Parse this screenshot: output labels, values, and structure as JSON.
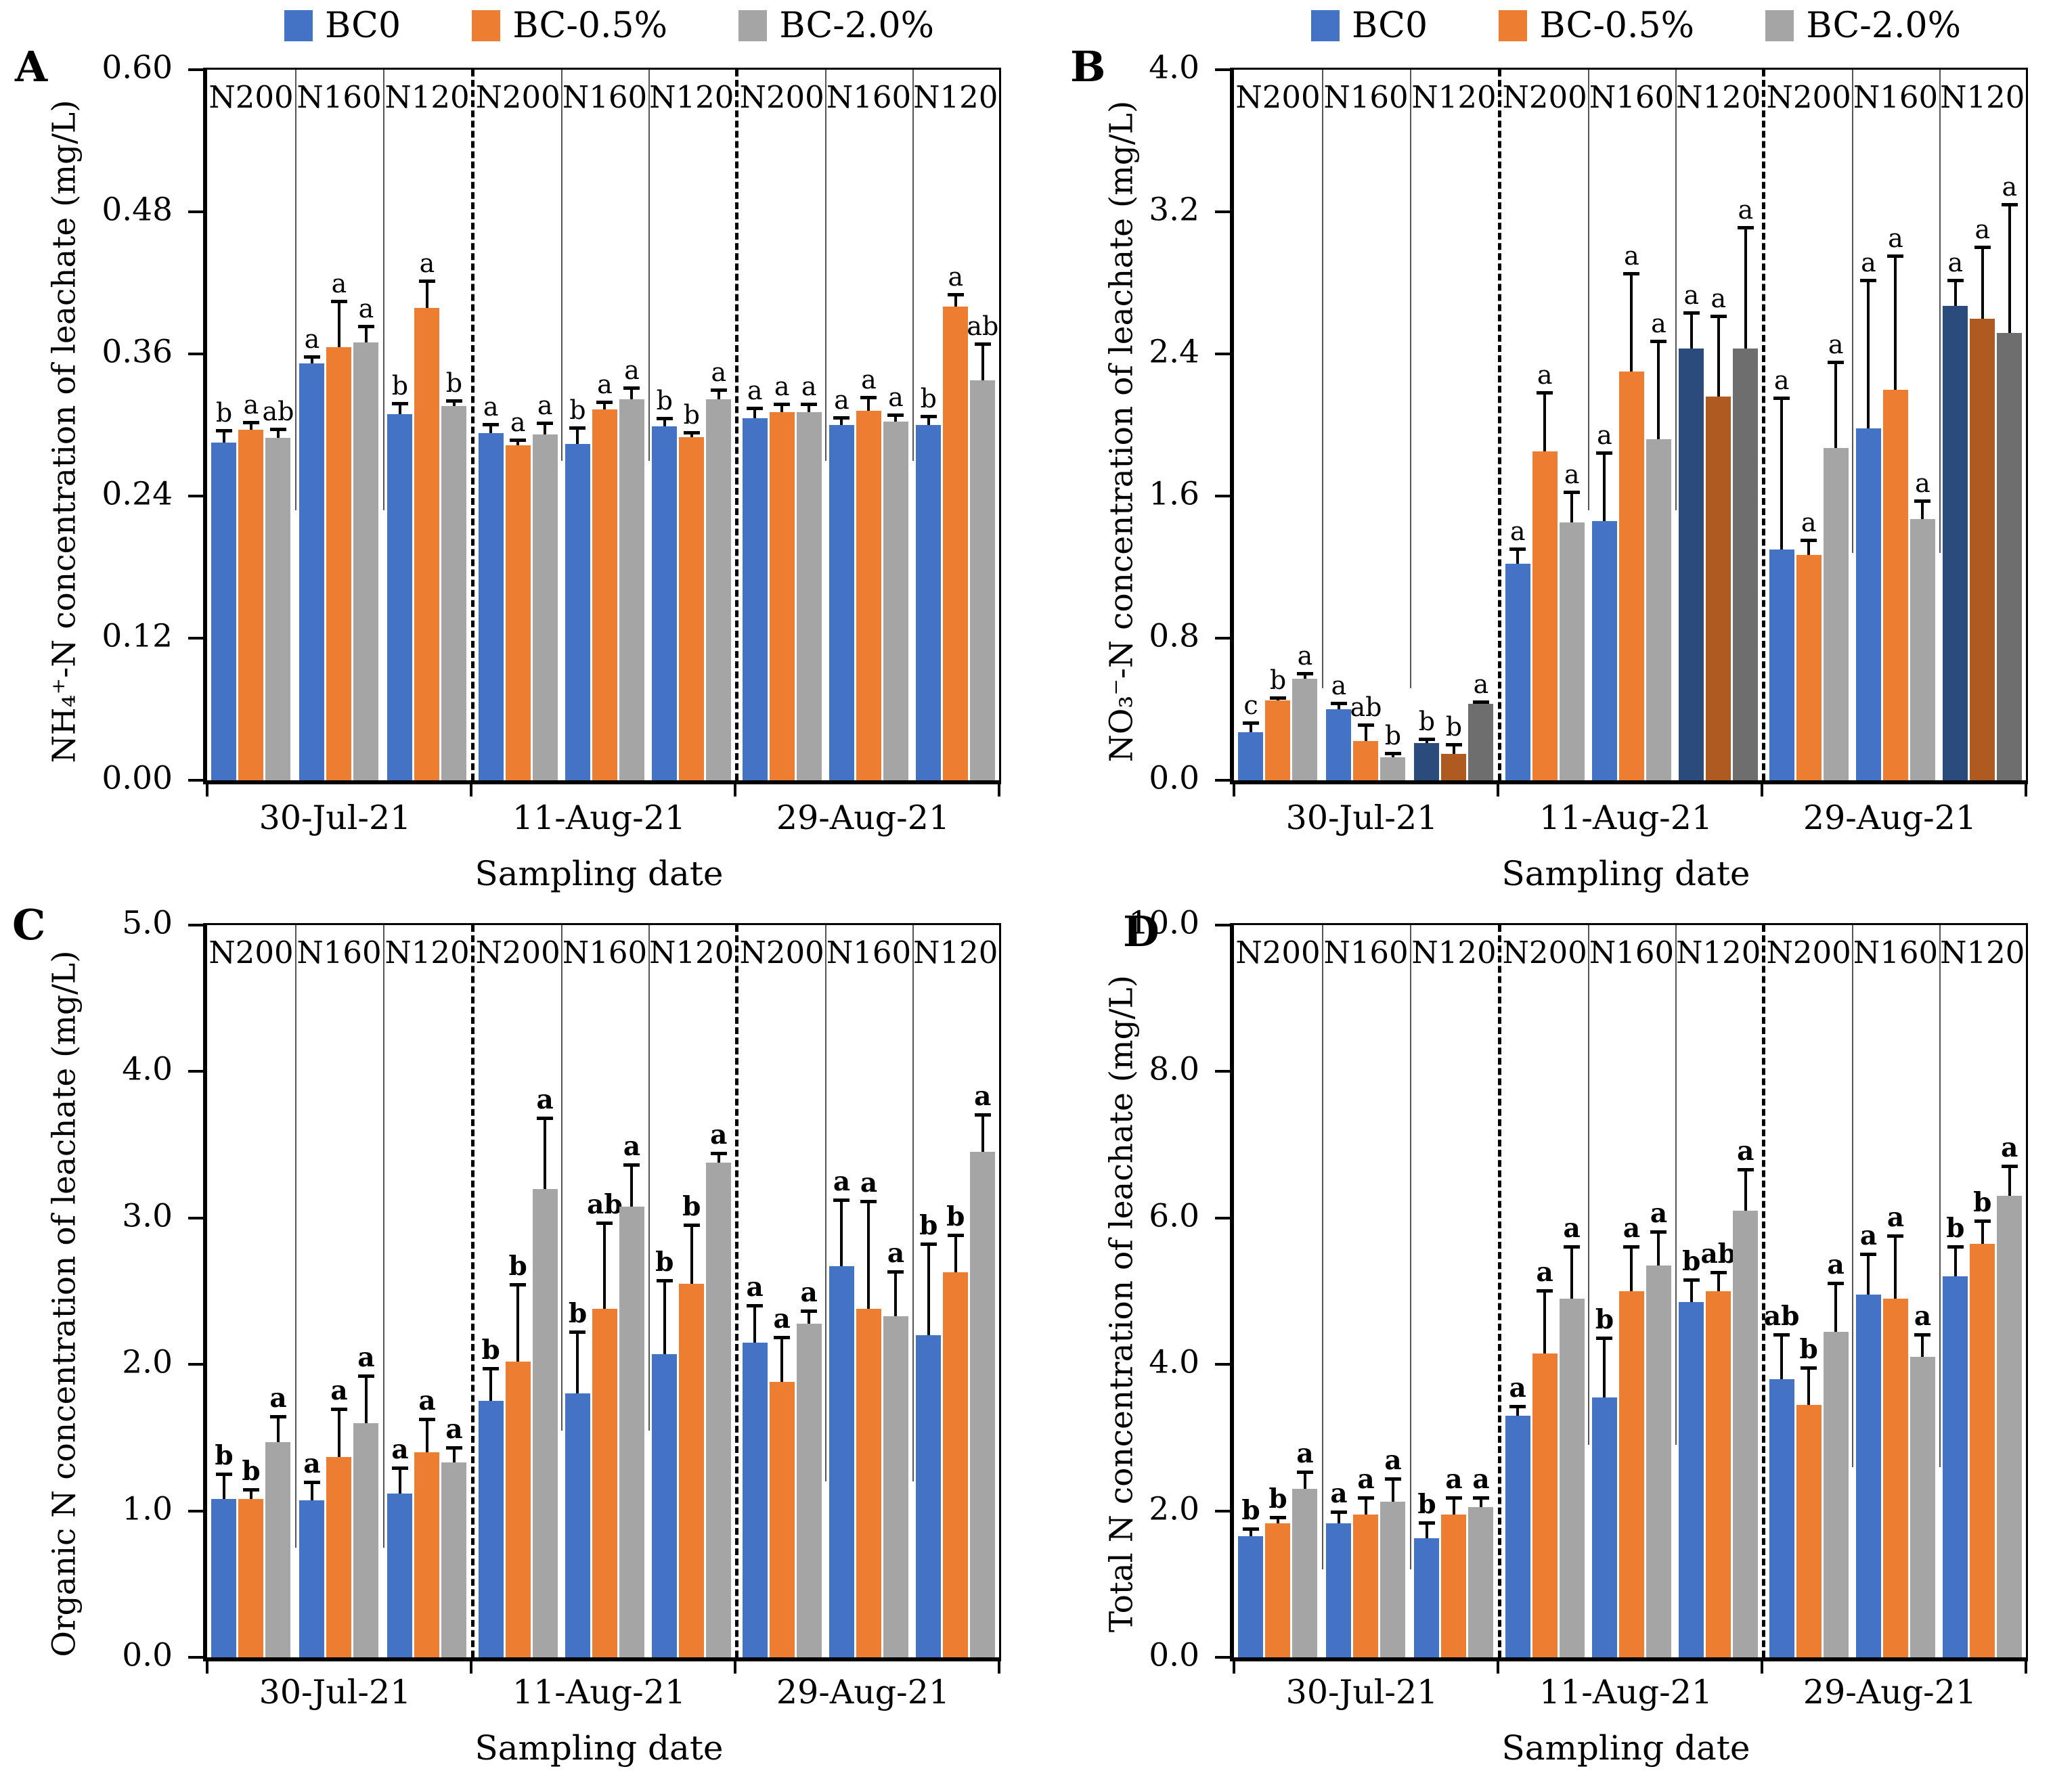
{
  "figure": {
    "xlabel": "Sampling date",
    "dates": [
      "30-Jul-21",
      "11-Aug-21",
      "29-Aug-21"
    ],
    "treatments": [
      "N200",
      "N160",
      "N120"
    ]
  },
  "legend": {
    "items": [
      {
        "label": "BC0",
        "color": "#4472C4"
      },
      {
        "label": "BC-0.5%",
        "color": "#ED7D31"
      },
      {
        "label": "BC-2.0%",
        "color": "#A5A5A5"
      }
    ]
  },
  "colors": {
    "blue": "#4472C4",
    "orange": "#ED7D31",
    "gray": "#A5A5A5",
    "dark_blue": "#2A4B7C",
    "dark_orange": "#AE5A21",
    "dark_gray": "#6E6E6E"
  },
  "chart_data": [
    {
      "panel": "A",
      "type": "bar",
      "ylabel": "NH₄⁺-N concentration of leachate (mg/L)",
      "xlabel": "Sampling date",
      "ylim": [
        0,
        0.6
      ],
      "yticks": [
        "0.60",
        "0.48",
        "0.36",
        "0.24",
        "0.12",
        "0.00"
      ],
      "categories": [
        "30-Jul-21",
        "11-Aug-21",
        "29-Aug-21"
      ],
      "treatments": [
        "N200",
        "N160",
        "N120"
      ],
      "series": [
        "BC0",
        "BC-0.5%",
        "BC-2.0%"
      ],
      "dark_n120": false,
      "groups": [
        {
          "date": "30-Jul-21",
          "cells": [
            {
              "treatment": "N200",
              "bars": [
                [
                  0.285,
                  0.01,
                  "b"
                ],
                [
                  0.296,
                  0.006,
                  "a"
                ],
                [
                  0.289,
                  0.007,
                  "ab"
                ]
              ]
            },
            {
              "treatment": "N160",
              "bars": [
                [
                  0.352,
                  0.005,
                  "a"
                ],
                [
                  0.366,
                  0.038,
                  "a"
                ],
                [
                  0.37,
                  0.013,
                  "a"
                ]
              ]
            },
            {
              "treatment": "N120",
              "bars": [
                [
                  0.309,
                  0.009,
                  "b"
                ],
                [
                  0.399,
                  0.022,
                  "a"
                ],
                [
                  0.316,
                  0.004,
                  "b"
                ]
              ]
            }
          ]
        },
        {
          "date": "11-Aug-21",
          "cells": [
            {
              "treatment": "N200",
              "bars": [
                [
                  0.293,
                  0.007,
                  "a"
                ],
                [
                  0.283,
                  0.004,
                  "a"
                ],
                [
                  0.292,
                  0.009,
                  "a"
                ]
              ]
            },
            {
              "treatment": "N160",
              "bars": [
                [
                  0.284,
                  0.013,
                  "b"
                ],
                [
                  0.313,
                  0.006,
                  "a"
                ],
                [
                  0.322,
                  0.009,
                  "a"
                ]
              ]
            },
            {
              "treatment": "N120",
              "bars": [
                [
                  0.299,
                  0.006,
                  "b"
                ],
                [
                  0.29,
                  0.003,
                  "b"
                ],
                [
                  0.322,
                  0.007,
                  "a"
                ]
              ]
            }
          ]
        },
        {
          "date": "29-Aug-21",
          "cells": [
            {
              "treatment": "N200",
              "bars": [
                [
                  0.306,
                  0.008,
                  "a"
                ],
                [
                  0.311,
                  0.006,
                  "a"
                ],
                [
                  0.311,
                  0.006,
                  "a"
                ]
              ]
            },
            {
              "treatment": "N160",
              "bars": [
                [
                  0.3,
                  0.006,
                  "a"
                ],
                [
                  0.312,
                  0.011,
                  "a"
                ],
                [
                  0.303,
                  0.005,
                  "a"
                ]
              ]
            },
            {
              "treatment": "N120",
              "bars": [
                [
                  0.3,
                  0.007,
                  "b"
                ],
                [
                  0.4,
                  0.01,
                  "a"
                ],
                [
                  0.338,
                  0.03,
                  "ab"
                ]
              ]
            }
          ]
        }
      ]
    },
    {
      "panel": "B",
      "type": "bar",
      "ylabel": "NO₃⁻-N concentration of leachate (mg/L)",
      "xlabel": "Sampling date",
      "ylim": [
        0,
        4.0
      ],
      "yticks": [
        "4.0",
        "3.2",
        "2.4",
        "1.6",
        "0.8",
        "0.0"
      ],
      "categories": [
        "30-Jul-21",
        "11-Aug-21",
        "29-Aug-21"
      ],
      "treatments": [
        "N200",
        "N160",
        "N120"
      ],
      "series": [
        "BC0",
        "BC-0.5%",
        "BC-2.0%"
      ],
      "dark_n120": true,
      "groups": [
        {
          "date": "30-Jul-21",
          "cells": [
            {
              "treatment": "N200",
              "bars": [
                [
                  0.27,
                  0.05,
                  "c"
                ],
                [
                  0.45,
                  0.01,
                  "b"
                ],
                [
                  0.57,
                  0.03,
                  "a"
                ]
              ]
            },
            {
              "treatment": "N160",
              "bars": [
                [
                  0.4,
                  0.03,
                  "a"
                ],
                [
                  0.22,
                  0.09,
                  "ab"
                ],
                [
                  0.13,
                  0.02,
                  "b"
                ]
              ]
            },
            {
              "treatment": "N120",
              "bars": [
                [
                  0.21,
                  0.02,
                  "b"
                ],
                [
                  0.15,
                  0.05,
                  "b"
                ],
                [
                  0.43,
                  0.01,
                  "a"
                ]
              ]
            }
          ]
        },
        {
          "date": "11-Aug-21",
          "cells": [
            {
              "treatment": "N200",
              "bars": [
                [
                  1.22,
                  0.08,
                  "a"
                ],
                [
                  1.85,
                  0.33,
                  "a"
                ],
                [
                  1.45,
                  0.17,
                  "a"
                ]
              ]
            },
            {
              "treatment": "N160",
              "bars": [
                [
                  1.46,
                  0.38,
                  "a"
                ],
                [
                  2.3,
                  0.55,
                  "a"
                ],
                [
                  1.92,
                  0.55,
                  "a"
                ]
              ]
            },
            {
              "treatment": "N120",
              "bars": [
                [
                  2.43,
                  0.2,
                  "a"
                ],
                [
                  2.16,
                  0.45,
                  "a"
                ],
                [
                  2.43,
                  0.68,
                  "a"
                ]
              ]
            }
          ]
        },
        {
          "date": "29-Aug-21",
          "cells": [
            {
              "treatment": "N200",
              "bars": [
                [
                  1.3,
                  0.85,
                  "a"
                ],
                [
                  1.27,
                  0.08,
                  "a"
                ],
                [
                  1.87,
                  0.48,
                  "a"
                ]
              ]
            },
            {
              "treatment": "N160",
              "bars": [
                [
                  1.98,
                  0.83,
                  "a"
                ],
                [
                  2.2,
                  0.75,
                  "a"
                ],
                [
                  1.47,
                  0.1,
                  "a"
                ]
              ]
            },
            {
              "treatment": "N120",
              "bars": [
                [
                  2.67,
                  0.14,
                  "a"
                ],
                [
                  2.6,
                  0.4,
                  "a"
                ],
                [
                  2.52,
                  0.72,
                  "a"
                ]
              ]
            }
          ]
        }
      ]
    },
    {
      "panel": "C",
      "type": "bar",
      "ylabel": "Organic N concentration of leachate (mg/L)",
      "xlabel": "Sampling date",
      "ylim": [
        0,
        5.0
      ],
      "yticks": [
        "5.0",
        "4.0",
        "3.0",
        "2.0",
        "1.0",
        "0.0"
      ],
      "categories": [
        "30-Jul-21",
        "11-Aug-21",
        "29-Aug-21"
      ],
      "treatments": [
        "N200",
        "N160",
        "N120"
      ],
      "series": [
        "BC0",
        "BC-0.5%",
        "BC-2.0%"
      ],
      "dark_n120": false,
      "groups": [
        {
          "date": "30-Jul-21",
          "cells": [
            {
              "treatment": "N200",
              "bars": [
                [
                  1.08,
                  0.17,
                  "b"
                ],
                [
                  1.08,
                  0.06,
                  "b"
                ],
                [
                  1.47,
                  0.17,
                  "a"
                ]
              ]
            },
            {
              "treatment": "N160",
              "bars": [
                [
                  1.07,
                  0.12,
                  "a"
                ],
                [
                  1.37,
                  0.32,
                  "a"
                ],
                [
                  1.6,
                  0.32,
                  "a"
                ]
              ]
            },
            {
              "treatment": "N120",
              "bars": [
                [
                  1.12,
                  0.17,
                  "a"
                ],
                [
                  1.4,
                  0.22,
                  "a"
                ],
                [
                  1.33,
                  0.1,
                  "a"
                ]
              ]
            }
          ]
        },
        {
          "date": "11-Aug-21",
          "cells": [
            {
              "treatment": "N200",
              "bars": [
                [
                  1.75,
                  0.22,
                  "b"
                ],
                [
                  2.02,
                  0.52,
                  "b"
                ],
                [
                  3.2,
                  0.48,
                  "a"
                ]
              ]
            },
            {
              "treatment": "N160",
              "bars": [
                [
                  1.8,
                  0.42,
                  "b"
                ],
                [
                  2.38,
                  0.58,
                  "ab"
                ],
                [
                  3.08,
                  0.28,
                  "a"
                ]
              ]
            },
            {
              "treatment": "N120",
              "bars": [
                [
                  2.07,
                  0.5,
                  "b"
                ],
                [
                  2.55,
                  0.4,
                  "b"
                ],
                [
                  3.38,
                  0.06,
                  "a"
                ]
              ]
            }
          ]
        },
        {
          "date": "29-Aug-21",
          "cells": [
            {
              "treatment": "N200",
              "bars": [
                [
                  2.15,
                  0.25,
                  "a"
                ],
                [
                  1.88,
                  0.3,
                  "a"
                ],
                [
                  2.28,
                  0.08,
                  "a"
                ]
              ]
            },
            {
              "treatment": "N160",
              "bars": [
                [
                  2.67,
                  0.45,
                  "a"
                ],
                [
                  2.38,
                  0.73,
                  "a"
                ],
                [
                  2.33,
                  0.3,
                  "a"
                ]
              ]
            },
            {
              "treatment": "N120",
              "bars": [
                [
                  2.2,
                  0.62,
                  "b"
                ],
                [
                  2.63,
                  0.25,
                  "b"
                ],
                [
                  3.45,
                  0.25,
                  "a"
                ]
              ]
            }
          ]
        }
      ]
    },
    {
      "panel": "D",
      "type": "bar",
      "ylabel": "Total N concentration of leachate (mg/L)",
      "xlabel": "Sampling date",
      "ylim": [
        0,
        10.0
      ],
      "yticks": [
        "10.0",
        "8.0",
        "6.0",
        "4.0",
        "2.0",
        "0.0"
      ],
      "categories": [
        "30-Jul-21",
        "11-Aug-21",
        "29-Aug-21"
      ],
      "treatments": [
        "N200",
        "N160",
        "N120"
      ],
      "series": [
        "BC0",
        "BC-0.5%",
        "BC-2.0%"
      ],
      "dark_n120": false,
      "groups": [
        {
          "date": "30-Jul-21",
          "cells": [
            {
              "treatment": "N200",
              "bars": [
                [
                  1.65,
                  0.1,
                  "b"
                ],
                [
                  1.83,
                  0.07,
                  "b"
                ],
                [
                  2.3,
                  0.22,
                  "a"
                ]
              ]
            },
            {
              "treatment": "N160",
              "bars": [
                [
                  1.83,
                  0.15,
                  "a"
                ],
                [
                  1.95,
                  0.22,
                  "a"
                ],
                [
                  2.13,
                  0.3,
                  "a"
                ]
              ]
            },
            {
              "treatment": "N120",
              "bars": [
                [
                  1.63,
                  0.2,
                  "b"
                ],
                [
                  1.95,
                  0.22,
                  "a"
                ],
                [
                  2.05,
                  0.12,
                  "a"
                ]
              ]
            }
          ]
        },
        {
          "date": "11-Aug-21",
          "cells": [
            {
              "treatment": "N200",
              "bars": [
                [
                  3.3,
                  0.12,
                  "a"
                ],
                [
                  4.15,
                  0.85,
                  "a"
                ],
                [
                  4.9,
                  0.7,
                  "a"
                ]
              ]
            },
            {
              "treatment": "N160",
              "bars": [
                [
                  3.55,
                  0.8,
                  "b"
                ],
                [
                  5.0,
                  0.6,
                  "a"
                ],
                [
                  5.35,
                  0.45,
                  "a"
                ]
              ]
            },
            {
              "treatment": "N120",
              "bars": [
                [
                  4.85,
                  0.3,
                  "b"
                ],
                [
                  5.0,
                  0.25,
                  "ab"
                ],
                [
                  6.1,
                  0.55,
                  "a"
                ]
              ]
            }
          ]
        },
        {
          "date": "29-Aug-21",
          "cells": [
            {
              "treatment": "N200",
              "bars": [
                [
                  3.8,
                  0.6,
                  "ab"
                ],
                [
                  3.45,
                  0.5,
                  "b"
                ],
                [
                  4.45,
                  0.65,
                  "a"
                ]
              ]
            },
            {
              "treatment": "N160",
              "bars": [
                [
                  4.95,
                  0.55,
                  "a"
                ],
                [
                  4.9,
                  0.85,
                  "a"
                ],
                [
                  4.1,
                  0.3,
                  "a"
                ]
              ]
            },
            {
              "treatment": "N120",
              "bars": [
                [
                  5.2,
                  0.4,
                  "b"
                ],
                [
                  5.65,
                  0.3,
                  "b"
                ],
                [
                  6.3,
                  0.4,
                  "a"
                ]
              ]
            }
          ]
        }
      ]
    }
  ]
}
